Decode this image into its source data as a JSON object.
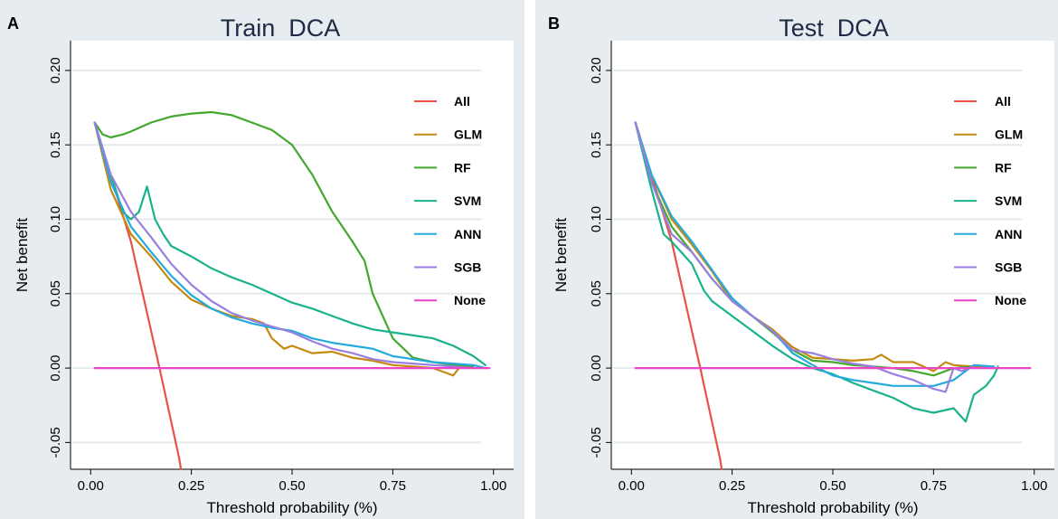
{
  "figure": {
    "background": "#e6ecf0"
  },
  "chart_data": [
    {
      "panel_label": "A",
      "type": "line",
      "title": "Train  DCA",
      "xlabel": "Threshold probability (%)",
      "ylabel": "Net benefit",
      "xlim": [
        -0.05,
        1.05
      ],
      "ylim": [
        -0.068,
        0.22
      ],
      "xticks": [
        0,
        0.25,
        0.5,
        0.75,
        1
      ],
      "xtick_labels": [
        "0.00",
        "0.25",
        "0.50",
        "0.75",
        "1.00"
      ],
      "yticks": [
        -0.05,
        0,
        0.05,
        0.1,
        0.15,
        0.2
      ],
      "ytick_labels": [
        "-0.05",
        "0.00",
        "0.05",
        "0.10",
        "0.15",
        "0.20"
      ],
      "legend": {
        "placement": "top-right",
        "entries": [
          "All",
          "GLM",
          "RF",
          "SVM",
          "ANN",
          "SGB",
          "None"
        ]
      },
      "series": [
        {
          "name": "All",
          "color": "#e8524a",
          "x": [
            0.01,
            0.1,
            0.171,
            0.22,
            0.224
          ],
          "y": [
            0.165,
            0.085,
            0.0,
            -0.061,
            -0.068
          ]
        },
        {
          "name": "GLM",
          "color": "#c48a0f",
          "x": [
            0.01,
            0.05,
            0.1,
            0.15,
            0.2,
            0.25,
            0.3,
            0.35,
            0.4,
            0.43,
            0.45,
            0.48,
            0.5,
            0.55,
            0.6,
            0.65,
            0.7,
            0.75,
            0.8,
            0.85,
            0.88,
            0.9,
            0.92
          ],
          "y": [
            0.165,
            0.12,
            0.09,
            0.075,
            0.058,
            0.046,
            0.04,
            0.035,
            0.033,
            0.03,
            0.02,
            0.013,
            0.015,
            0.01,
            0.011,
            0.007,
            0.005,
            0.002,
            0.001,
            0.0,
            -0.003,
            -0.005,
            0.002
          ]
        },
        {
          "name": "RF",
          "color": "#44a82e",
          "x": [
            0.01,
            0.03,
            0.05,
            0.08,
            0.1,
            0.15,
            0.2,
            0.25,
            0.3,
            0.35,
            0.4,
            0.45,
            0.5,
            0.55,
            0.6,
            0.63,
            0.65,
            0.68,
            0.7,
            0.75,
            0.8,
            0.85,
            0.9,
            0.95
          ],
          "y": [
            0.165,
            0.157,
            0.155,
            0.157,
            0.159,
            0.165,
            0.169,
            0.171,
            0.172,
            0.17,
            0.165,
            0.16,
            0.15,
            0.13,
            0.105,
            0.093,
            0.085,
            0.072,
            0.05,
            0.02,
            0.007,
            0.004,
            0.002,
            0.001
          ]
        },
        {
          "name": "SVM",
          "color": "#19b28d",
          "x": [
            0.01,
            0.05,
            0.08,
            0.1,
            0.12,
            0.14,
            0.16,
            0.18,
            0.2,
            0.25,
            0.3,
            0.35,
            0.4,
            0.45,
            0.5,
            0.55,
            0.6,
            0.65,
            0.7,
            0.75,
            0.8,
            0.85,
            0.9,
            0.95,
            0.98
          ],
          "y": [
            0.165,
            0.13,
            0.105,
            0.1,
            0.105,
            0.122,
            0.1,
            0.09,
            0.082,
            0.075,
            0.067,
            0.061,
            0.056,
            0.05,
            0.044,
            0.04,
            0.035,
            0.03,
            0.026,
            0.024,
            0.022,
            0.02,
            0.015,
            0.008,
            0.002
          ]
        },
        {
          "name": "ANN",
          "color": "#25aade",
          "x": [
            0.01,
            0.05,
            0.1,
            0.15,
            0.2,
            0.25,
            0.3,
            0.35,
            0.4,
            0.45,
            0.5,
            0.55,
            0.6,
            0.65,
            0.7,
            0.75,
            0.8,
            0.85,
            0.9,
            0.95,
            0.98
          ],
          "y": [
            0.165,
            0.125,
            0.095,
            0.078,
            0.062,
            0.049,
            0.04,
            0.034,
            0.03,
            0.027,
            0.025,
            0.02,
            0.017,
            0.015,
            0.013,
            0.008,
            0.006,
            0.004,
            0.003,
            0.002,
            0.0
          ]
        },
        {
          "name": "SGB",
          "color": "#9a7ee0",
          "x": [
            0.01,
            0.05,
            0.1,
            0.15,
            0.2,
            0.25,
            0.3,
            0.35,
            0.4,
            0.45,
            0.5,
            0.55,
            0.6,
            0.65,
            0.7,
            0.75,
            0.8,
            0.85,
            0.9,
            0.95
          ],
          "y": [
            0.165,
            0.13,
            0.105,
            0.088,
            0.07,
            0.056,
            0.045,
            0.037,
            0.032,
            0.028,
            0.024,
            0.018,
            0.013,
            0.01,
            0.006,
            0.004,
            0.003,
            0.002,
            0.001,
            0.0
          ]
        },
        {
          "name": "None",
          "color": "#ee44c8",
          "x": [
            0.01,
            0.99
          ],
          "y": [
            0.0,
            0.0
          ]
        }
      ]
    },
    {
      "panel_label": "B",
      "type": "line",
      "title": "Test  DCA",
      "xlabel": "Threshold probability (%)",
      "ylabel": "Net benefit",
      "xlim": [
        -0.05,
        1.05
      ],
      "ylim": [
        -0.068,
        0.22
      ],
      "xticks": [
        0,
        0.25,
        0.5,
        0.75,
        1
      ],
      "xtick_labels": [
        "0.00",
        "0.25",
        "0.50",
        "0.75",
        "1.00"
      ],
      "yticks": [
        -0.05,
        0,
        0.05,
        0.1,
        0.15,
        0.2
      ],
      "ytick_labels": [
        "-0.05",
        "0.00",
        "0.05",
        "0.10",
        "0.15",
        "0.20"
      ],
      "legend": {
        "placement": "top-right",
        "entries": [
          "All",
          "GLM",
          "RF",
          "SVM",
          "ANN",
          "SGB",
          "None"
        ]
      },
      "series": [
        {
          "name": "All",
          "color": "#e8524a",
          "x": [
            0.01,
            0.1,
            0.171,
            0.22,
            0.224
          ],
          "y": [
            0.165,
            0.085,
            0.0,
            -0.061,
            -0.068
          ]
        },
        {
          "name": "GLM",
          "color": "#c48a0f",
          "x": [
            0.01,
            0.05,
            0.1,
            0.15,
            0.2,
            0.25,
            0.3,
            0.35,
            0.4,
            0.45,
            0.5,
            0.55,
            0.6,
            0.62,
            0.65,
            0.7,
            0.75,
            0.78,
            0.8,
            0.85,
            0.9
          ],
          "y": [
            0.165,
            0.13,
            0.1,
            0.083,
            0.065,
            0.045,
            0.035,
            0.026,
            0.014,
            0.007,
            0.006,
            0.005,
            0.006,
            0.009,
            0.004,
            0.004,
            -0.002,
            0.004,
            0.002,
            0.001,
            0.0
          ]
        },
        {
          "name": "RF",
          "color": "#44a82e",
          "x": [
            0.01,
            0.05,
            0.1,
            0.15,
            0.2,
            0.25,
            0.3,
            0.35,
            0.4,
            0.45,
            0.5,
            0.55,
            0.6,
            0.65,
            0.7,
            0.75,
            0.8,
            0.85
          ],
          "y": [
            0.165,
            0.125,
            0.095,
            0.078,
            0.06,
            0.045,
            0.035,
            0.024,
            0.012,
            0.005,
            0.004,
            0.002,
            0.001,
            0.0,
            -0.002,
            -0.005,
            0.0,
            0.001
          ]
        },
        {
          "name": "SVM",
          "color": "#19b28d",
          "x": [
            0.01,
            0.05,
            0.08,
            0.1,
            0.15,
            0.18,
            0.2,
            0.25,
            0.3,
            0.35,
            0.4,
            0.45,
            0.5,
            0.55,
            0.6,
            0.65,
            0.7,
            0.75,
            0.8,
            0.83,
            0.85,
            0.88,
            0.9,
            0.91
          ],
          "y": [
            0.165,
            0.12,
            0.09,
            0.085,
            0.07,
            0.052,
            0.045,
            0.035,
            0.025,
            0.015,
            0.006,
            0.0,
            -0.004,
            -0.01,
            -0.015,
            -0.02,
            -0.027,
            -0.03,
            -0.027,
            -0.036,
            -0.018,
            -0.012,
            -0.005,
            0.001
          ]
        },
        {
          "name": "ANN",
          "color": "#25aade",
          "x": [
            0.01,
            0.05,
            0.1,
            0.15,
            0.2,
            0.25,
            0.3,
            0.35,
            0.4,
            0.45,
            0.5,
            0.55,
            0.6,
            0.65,
            0.7,
            0.75,
            0.8,
            0.85,
            0.9
          ],
          "y": [
            0.165,
            0.13,
            0.102,
            0.085,
            0.066,
            0.047,
            0.035,
            0.025,
            0.01,
            0.002,
            -0.005,
            -0.008,
            -0.01,
            -0.012,
            -0.012,
            -0.012,
            -0.008,
            0.002,
            0.001
          ]
        },
        {
          "name": "SGB",
          "color": "#9a7ee0",
          "x": [
            0.01,
            0.05,
            0.1,
            0.15,
            0.2,
            0.25,
            0.3,
            0.35,
            0.4,
            0.45,
            0.5,
            0.55,
            0.6,
            0.65,
            0.7,
            0.75,
            0.78,
            0.8,
            0.82,
            0.85
          ],
          "y": [
            0.165,
            0.125,
            0.09,
            0.078,
            0.06,
            0.045,
            0.035,
            0.025,
            0.012,
            0.01,
            0.006,
            0.003,
            0.001,
            -0.004,
            -0.008,
            -0.014,
            -0.016,
            0.0,
            -0.002,
            0.001
          ]
        },
        {
          "name": "None",
          "color": "#ee44c8",
          "x": [
            0.01,
            0.99
          ],
          "y": [
            0.0,
            0.0
          ]
        }
      ]
    }
  ]
}
